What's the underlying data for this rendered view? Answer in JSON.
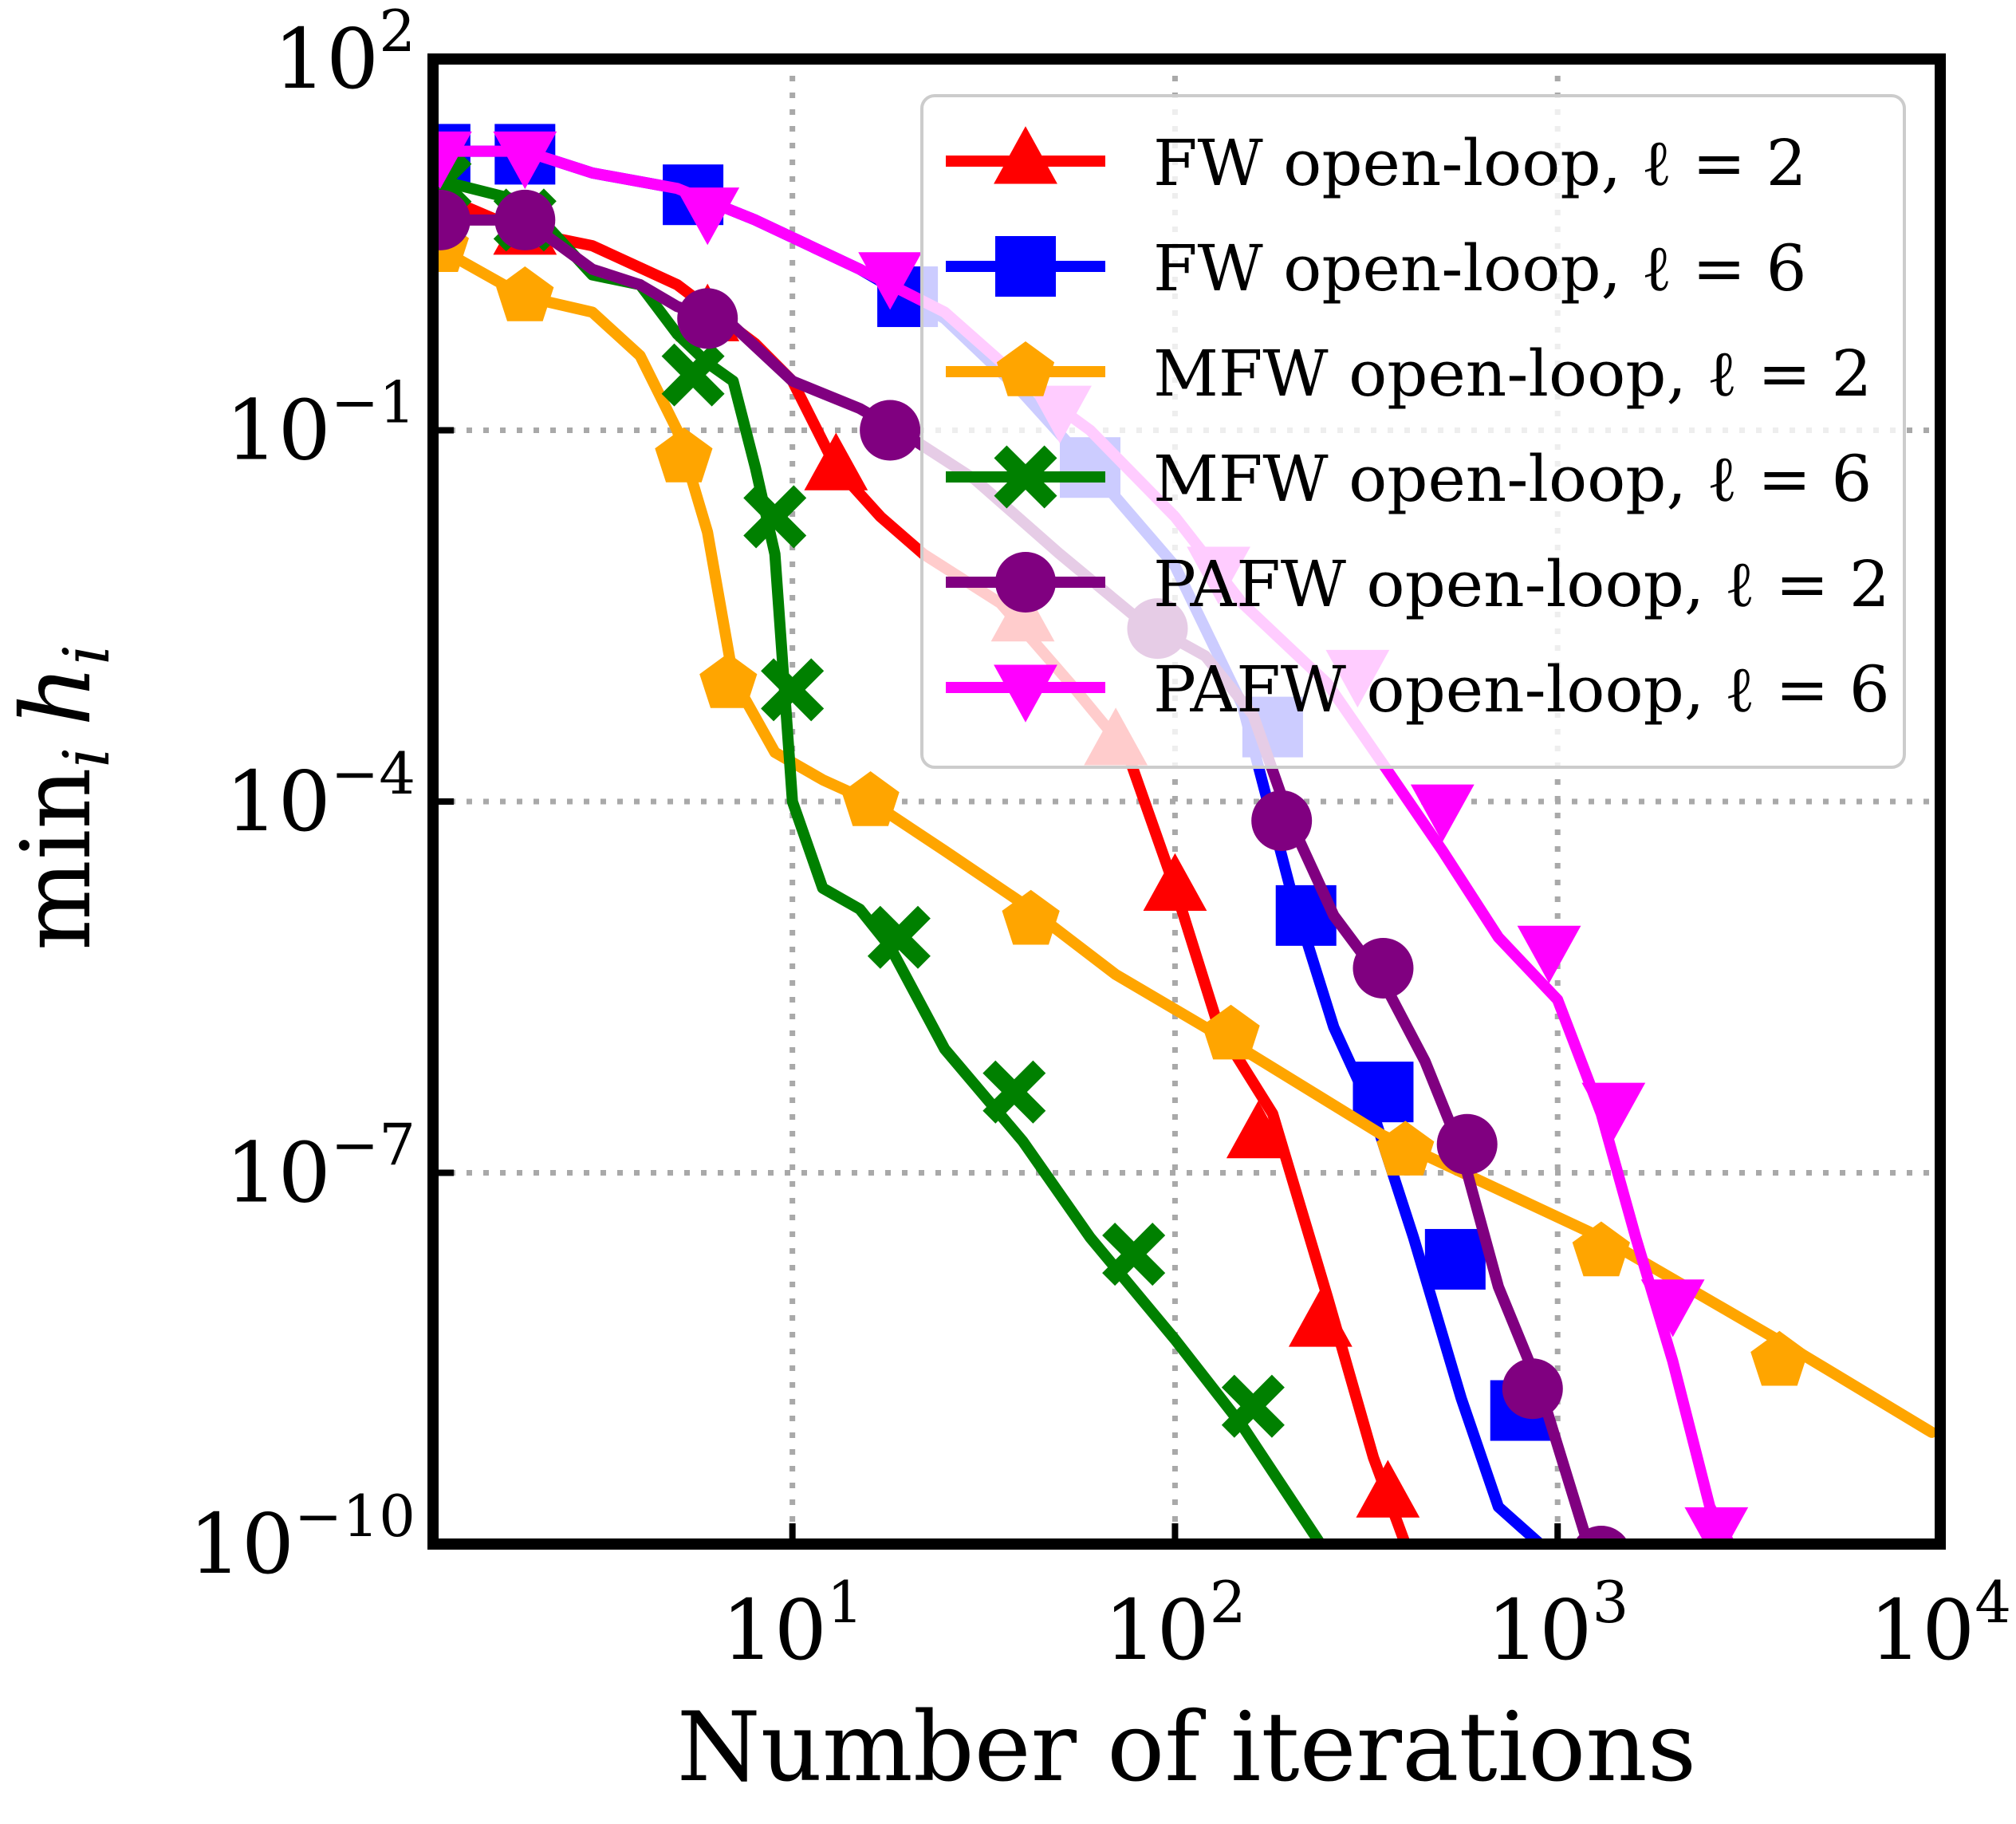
{
  "chart_data": {
    "type": "line",
    "xlabel": "Number of iterations",
    "ylabel": "min",
    "ylabel_sub": "i",
    "ylabel_var": "h",
    "ylabel_var_sub": "i",
    "xscale": "log",
    "yscale": "log",
    "xlim": [
      1.15,
      10000
    ],
    "ylim": [
      1e-10,
      100
    ],
    "grid": true,
    "legend_position": "top-right",
    "x_ticks": [
      {
        "value": 10,
        "base": "10",
        "exp": "1"
      },
      {
        "value": 100,
        "base": "10",
        "exp": "2"
      },
      {
        "value": 1000,
        "base": "10",
        "exp": "3"
      },
      {
        "value": 10000,
        "base": "10",
        "exp": "4"
      }
    ],
    "y_ticks": [
      {
        "value": 1e-10,
        "base": "10",
        "exp": "−10"
      },
      {
        "value": 1e-07,
        "base": "10",
        "exp": "−7"
      },
      {
        "value": 0.0001,
        "base": "10",
        "exp": "−4"
      },
      {
        "value": 0.1,
        "base": "10",
        "exp": "−1"
      },
      {
        "value": 100,
        "base": "10",
        "exp": "2"
      }
    ],
    "series": [
      {
        "name": "FW open-loop, ℓ = 2",
        "color": "#ff0000",
        "marker": "triangle-up",
        "line": [
          [
            1,
            10
          ],
          [
            2,
            4
          ],
          [
            3,
            3.1
          ],
          [
            5,
            1.5
          ],
          [
            8,
            0.5
          ],
          [
            10,
            0.25
          ],
          [
            13,
            0.05
          ],
          [
            17,
            0.02
          ],
          [
            22,
            0.01
          ],
          [
            35,
            0.004
          ],
          [
            55,
            0.0008
          ],
          [
            75,
            0.00025
          ],
          [
            100,
            2e-05
          ],
          [
            130,
            1.5e-06
          ],
          [
            180,
            3e-07
          ],
          [
            250,
            1e-08
          ],
          [
            330,
            5e-10
          ],
          [
            400,
            1e-10
          ]
        ],
        "markers": [
          [
            1.2,
            8
          ],
          [
            2,
            4
          ],
          [
            6,
            0.8
          ],
          [
            13,
            0.05
          ],
          [
            40,
            0.003
          ],
          [
            70,
            0.0003
          ],
          [
            100,
            2e-05
          ],
          [
            165,
            2e-07
          ],
          [
            240,
            6e-09
          ],
          [
            360,
            2.5e-10
          ]
        ]
      },
      {
        "name": "FW open-loop, ℓ = 6",
        "color": "#0000ff",
        "marker": "square",
        "line": [
          [
            1,
            18
          ],
          [
            2,
            18
          ],
          [
            3,
            12
          ],
          [
            5,
            9
          ],
          [
            8,
            5
          ],
          [
            15,
            2
          ],
          [
            25,
            0.8
          ],
          [
            40,
            0.2
          ],
          [
            60,
            0.05
          ],
          [
            100,
            0.008
          ],
          [
            150,
            0.0006
          ],
          [
            200,
            2e-05
          ],
          [
            260,
            1.5e-06
          ],
          [
            330,
            3e-07
          ],
          [
            420,
            3e-08
          ],
          [
            560,
            1.5e-09
          ],
          [
            700,
            2e-10
          ],
          [
            900,
            1e-10
          ]
        ],
        "markers": [
          [
            1.2,
            17
          ],
          [
            2,
            17
          ],
          [
            5.5,
            8
          ],
          [
            20,
            1.2
          ],
          [
            60,
            0.05
          ],
          [
            180,
            0.0004
          ],
          [
            220,
            1.2e-05
          ],
          [
            350,
            4.5e-07
          ],
          [
            540,
            2e-08
          ],
          [
            800,
            1.2e-09
          ]
        ]
      },
      {
        "name": "MFW open-loop, ℓ = 2",
        "color": "#ffa500",
        "marker": "pentagon",
        "line": [
          [
            1,
            4
          ],
          [
            2,
            1.2
          ],
          [
            3,
            0.9
          ],
          [
            4,
            0.4
          ],
          [
            5,
            0.1
          ],
          [
            6,
            0.015
          ],
          [
            7,
            0.001
          ],
          [
            9,
            0.00025
          ],
          [
            12,
            0.00015
          ],
          [
            16,
            0.0001
          ],
          [
            25,
            4e-05
          ],
          [
            40,
            1.5e-05
          ],
          [
            70,
            4e-06
          ],
          [
            150,
            1e-06
          ],
          [
            350,
            2e-07
          ],
          [
            1300,
            3e-08
          ],
          [
            4000,
            4e-09
          ],
          [
            9500,
            8e-10
          ]
        ],
        "markers": [
          [
            1.2,
            3
          ],
          [
            2,
            1.2
          ],
          [
            5.2,
            0.06
          ],
          [
            6.8,
            0.0009
          ],
          [
            16,
            0.0001
          ],
          [
            42,
            1.1e-05
          ],
          [
            140,
            1.3e-06
          ],
          [
            400,
            1.5e-07
          ],
          [
            1300,
            2.3e-08
          ],
          [
            3800,
            3e-09
          ]
        ]
      },
      {
        "name": "MFW open-loop, ℓ = 6",
        "color": "#008000",
        "marker": "x",
        "line": [
          [
            1,
            12
          ],
          [
            2,
            7
          ],
          [
            3,
            1.8
          ],
          [
            4,
            1.5
          ],
          [
            5,
            0.6
          ],
          [
            6,
            0.35
          ],
          [
            7,
            0.25
          ],
          [
            8,
            0.05
          ],
          [
            9,
            0.01
          ],
          [
            10,
            0.0001
          ],
          [
            12,
            2e-05
          ],
          [
            15,
            1.35e-05
          ],
          [
            18,
            6.7e-06
          ],
          [
            25,
            1e-06
          ],
          [
            40,
            1.8e-07
          ],
          [
            60,
            3e-08
          ],
          [
            100,
            4.5e-09
          ],
          [
            150,
            9e-10
          ],
          [
            240,
            1e-10
          ]
        ],
        "markers": [
          [
            1.2,
            10
          ],
          [
            2,
            5
          ],
          [
            5.5,
            0.28
          ],
          [
            9,
            0.02
          ],
          [
            10,
            0.0008
          ],
          [
            19,
            8e-06
          ],
          [
            38,
            4.5e-07
          ],
          [
            78,
            2.2e-08
          ],
          [
            160,
            1.3e-09
          ]
        ]
      },
      {
        "name": "PAFW open-loop, ℓ = 2",
        "color": "#800080",
        "marker": "circle",
        "line": [
          [
            1,
            5
          ],
          [
            2,
            5
          ],
          [
            3,
            2
          ],
          [
            4,
            1.5
          ],
          [
            5,
            1
          ],
          [
            7,
            0.7
          ],
          [
            10,
            0.25
          ],
          [
            15,
            0.15
          ],
          [
            20,
            0.09
          ],
          [
            30,
            0.04
          ],
          [
            50,
            0.01
          ],
          [
            80,
            0.003
          ],
          [
            120,
            0.0015
          ],
          [
            160,
            0.0005
          ],
          [
            200,
            7e-05
          ],
          [
            260,
            1.2e-05
          ],
          [
            350,
            3.5e-06
          ],
          [
            450,
            8e-07
          ],
          [
            560,
            1.5e-07
          ],
          [
            700,
            1.2e-08
          ],
          [
            900,
            1.8e-09
          ],
          [
            1200,
            1e-10
          ]
        ],
        "markers": [
          [
            1.2,
            5
          ],
          [
            2,
            5
          ],
          [
            6,
            0.8
          ],
          [
            18,
            0.1
          ],
          [
            90,
            0.0025
          ],
          [
            190,
            7e-05
          ],
          [
            350,
            4.5e-06
          ],
          [
            580,
            1.7e-07
          ],
          [
            860,
            1.8e-09
          ],
          [
            1300,
            8e-11
          ]
        ]
      },
      {
        "name": "PAFW open-loop, ℓ = 6",
        "color": "#ff00ff",
        "marker": "triangle-down",
        "line": [
          [
            1,
            18
          ],
          [
            2,
            18
          ],
          [
            3,
            12
          ],
          [
            5,
            9
          ],
          [
            8,
            5
          ],
          [
            15,
            2
          ],
          [
            25,
            0.9
          ],
          [
            40,
            0.25
          ],
          [
            60,
            0.1
          ],
          [
            100,
            0.02
          ],
          [
            150,
            0.004
          ],
          [
            250,
            0.0009
          ],
          [
            350,
            0.0002
          ],
          [
            500,
            4e-05
          ],
          [
            700,
            8e-06
          ],
          [
            1000,
            2.5e-06
          ],
          [
            1300,
            3e-07
          ],
          [
            1600,
            3e-08
          ],
          [
            2000,
            3e-09
          ],
          [
            2500,
            2e-10
          ],
          [
            3000,
            7e-11
          ]
        ],
        "markers": [
          [
            1.2,
            17
          ],
          [
            2,
            17
          ],
          [
            6,
            6
          ],
          [
            18,
            1.8
          ],
          [
            50,
            0.15
          ],
          [
            130,
            0.0075
          ],
          [
            300,
            0.0011
          ],
          [
            500,
            9e-05
          ],
          [
            950,
            6.5e-06
          ],
          [
            1400,
            3.5e-07
          ],
          [
            2000,
            9e-09
          ],
          [
            2600,
            1.3e-10
          ]
        ]
      }
    ]
  }
}
